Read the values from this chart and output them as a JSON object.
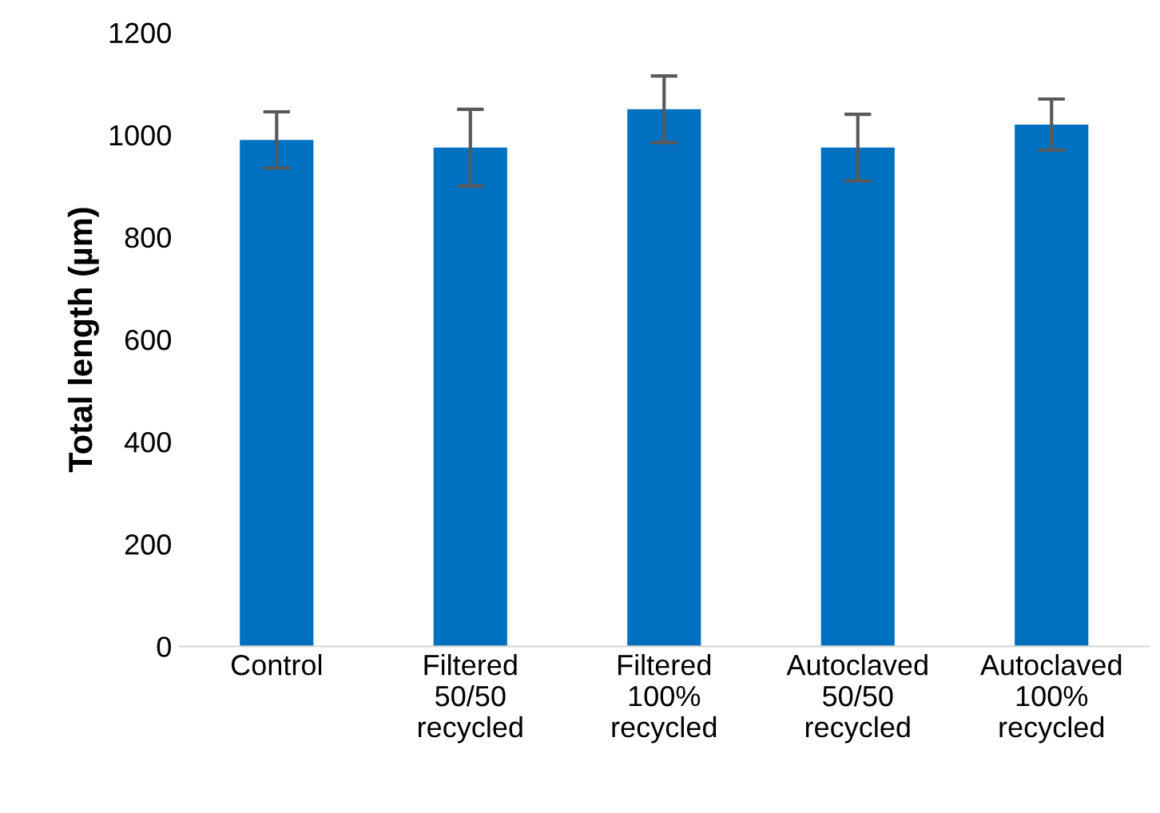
{
  "chart_data": {
    "type": "bar",
    "ylabel": "Total length (µm)",
    "categories": [
      "Control",
      "Filtered\n50/50\nrecycled",
      "Filtered\n100%\nrecycled",
      "Autoclaved\n50/50\nrecycled",
      "Autoclaved\n100%\nrecycled"
    ],
    "series": [
      {
        "color": "#0070c0",
        "values": [
          990,
          975,
          1050,
          975,
          1020
        ],
        "errors": [
          55,
          75,
          65,
          65,
          50
        ]
      }
    ],
    "ylim": [
      0,
      1200
    ],
    "yticks": [
      0,
      200,
      400,
      600,
      800,
      1000,
      1200
    ],
    "grid": false,
    "legend": false
  }
}
